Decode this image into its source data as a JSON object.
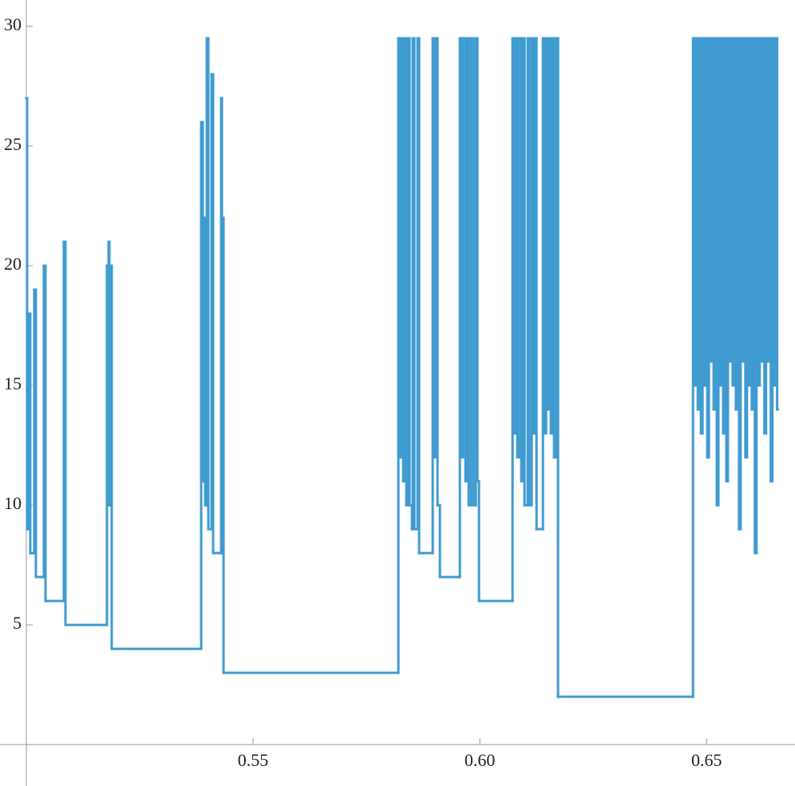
{
  "chart_data": {
    "type": "line",
    "step": "post",
    "color": "#3f9bd0",
    "grid": false,
    "xlim": [
      0.4942,
      0.6695
    ],
    "ylim": [
      -1.73,
      31.1
    ],
    "axes_origin": [
      0.5,
      0
    ],
    "xticks": [
      0.55,
      {
        "value": 0.6,
        "label": "0.60"
      },
      0.65
    ],
    "yticks": [
      5,
      10,
      15,
      20,
      25,
      30
    ],
    "x": [
      0.5,
      0.50018,
      0.50053,
      0.50088,
      0.50176,
      0.50211,
      0.50387,
      0.50423,
      0.50827,
      0.50863,
      0.51778,
      0.51813,
      0.51831,
      0.51849,
      0.51884,
      0.53856,
      0.53891,
      0.53926,
      0.53944,
      0.53979,
      0.54014,
      0.54085,
      0.5412,
      0.54296,
      0.54313,
      0.54331,
      0.54349,
      0.58204,
      0.58239,
      0.58275,
      0.5831,
      0.58345,
      0.5838,
      0.58415,
      0.58451,
      0.58504,
      0.58521,
      0.58556,
      0.58627,
      0.58662,
      0.58961,
      0.58996,
      0.59032,
      0.59067,
      0.5912,
      0.5956,
      0.59595,
      0.5963,
      0.59683,
      0.59718,
      0.59754,
      0.59806,
      0.59859,
      0.59912,
      0.59947,
      0.59982,
      0.60722,
      0.60757,
      0.60792,
      0.60827,
      0.60863,
      0.60915,
      0.60951,
      0.60986,
      0.61056,
      0.61092,
      0.61144,
      0.6118,
      0.61215,
      0.6125,
      0.61391,
      0.61426,
      0.61461,
      0.61496,
      0.61532,
      0.61567,
      0.61602,
      0.61637,
      0.6169,
      0.61725,
      0.64701,
      0.64736,
      0.64771,
      0.64806,
      0.64841,
      0.64876,
      0.64911,
      0.64946,
      0.64981,
      0.65016,
      0.65051,
      0.65086,
      0.65121,
      0.65156,
      0.65191,
      0.65226,
      0.65261,
      0.65296,
      0.65331,
      0.65366,
      0.65401,
      0.65436,
      0.65471,
      0.65506,
      0.65541,
      0.65576,
      0.65611,
      0.65646,
      0.65681,
      0.65716,
      0.65751,
      0.65786,
      0.65821,
      0.65856,
      0.65891,
      0.65926,
      0.65961,
      0.65996,
      0.66031,
      0.66066,
      0.66101,
      0.66136,
      0.66171,
      0.66206,
      0.66241,
      0.66276,
      0.66311,
      0.66346,
      0.66381,
      0.66416,
      0.66451,
      0.66486,
      0.66521,
      0.66556
    ],
    "values": [
      27,
      9,
      18,
      8,
      19,
      7,
      20,
      6,
      21,
      5,
      20,
      21,
      10,
      20,
      4,
      26,
      11,
      22,
      10,
      29.5,
      9,
      28,
      8,
      27,
      8,
      22,
      3,
      29.5,
      12,
      29.5,
      11,
      29.5,
      10,
      29.5,
      10,
      9,
      29.5,
      9,
      29.5,
      8,
      29.5,
      12,
      29.5,
      10,
      7,
      29.5,
      12,
      29.5,
      11,
      29.5,
      10,
      29.5,
      10,
      29.5,
      11,
      6,
      29.5,
      13,
      29.5,
      12,
      29.5,
      11,
      29.5,
      10,
      29.5,
      10,
      29.5,
      13,
      29.5,
      9,
      29.5,
      13,
      29.5,
      14,
      29.5,
      13,
      29.5,
      12,
      29.5,
      2,
      29.5,
      15,
      29.5,
      14,
      29.5,
      13,
      29.5,
      15,
      29.5,
      12,
      29.5,
      16,
      29.5,
      14,
      29.5,
      10,
      29.5,
      15,
      29.5,
      13,
      29.5,
      11,
      29.5,
      16,
      29.5,
      15,
      29.5,
      14,
      29.5,
      9,
      29.5,
      16,
      29.5,
      12,
      29.5,
      15,
      29.5,
      14,
      29.5,
      8,
      29.5,
      15,
      29.5,
      16,
      29.5,
      13,
      29.5,
      16,
      29.5,
      11,
      29.5,
      15,
      29.5,
      14
    ]
  }
}
